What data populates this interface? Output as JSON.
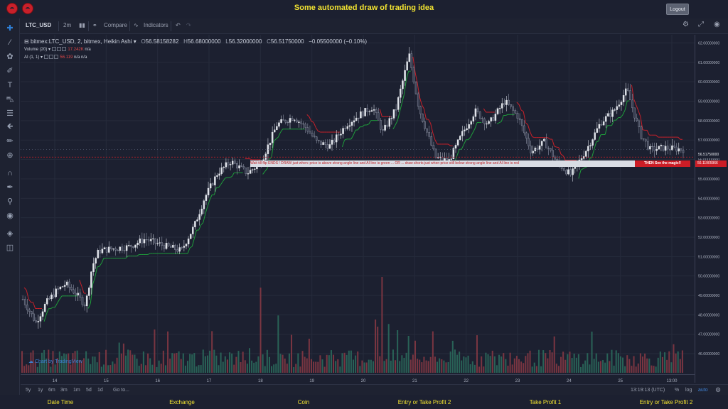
{
  "app": {
    "title": "Some automated draw of trading idea",
    "logout_label": "Logout"
  },
  "toolbar": {
    "symbol": "LTC_USD",
    "interval": "2m",
    "compare_label": "Compare",
    "indicators_label": "Indicators"
  },
  "legend": {
    "main": "bitmex:LTC_USD, 2, bitmex, Heikin Ashi",
    "o_label": "O",
    "o_value": "56.58158282",
    "h_label": "H",
    "h_value": "56.68000000",
    "l_label": "L",
    "l_value": "56.32000000",
    "c_label": "C",
    "c_value": "56.51750000",
    "change": "−0.05500000 (−0.10%)",
    "volume_label": "Volume (20)",
    "volume_value": "17.242K",
    "volume_na": "n/a",
    "ai_label": "AI (1, 1)",
    "ai_value": "56.119",
    "ai_na1": "n/a",
    "ai_na2": "n/a"
  },
  "banner": {
    "text": "Wait till flip ENDS !   DRAW just when:  price is above strong angle line and AI line is green   ...   OR   ...   draw shorts just when price still below strong angle line and AI line is red",
    "right": "THEN See the magic!!"
  },
  "price_tags": {
    "current": "56.51750000",
    "ai": "56.11905966"
  },
  "tv_link": "Chart by TradingView",
  "bottom": {
    "ranges": [
      "5y",
      "1y",
      "6m",
      "3m",
      "1m",
      "5d",
      "1d"
    ],
    "goto": "Go to...",
    "time": "13:19:13 (UTC)",
    "pct": "%",
    "log": "log",
    "auto": "auto"
  },
  "footer": {
    "cols": [
      "Date Time",
      "Exchange",
      "Coin",
      "Entry or Take Profit 2",
      "Take Profit 1",
      "Entry or Take Profit 2"
    ]
  },
  "colors": {
    "up": "#26a69a",
    "down": "#ef5350",
    "candle_up": "#dfe3ea",
    "ai_green": "#1f9d3b",
    "ai_red": "#c8202a",
    "accent": "#3d7fd1"
  },
  "chart_data": {
    "type": "candlestick",
    "price_ticks": [
      "62.00000000",
      "61.00000000",
      "60.00000000",
      "59.00000000",
      "58.00000000",
      "57.00000000",
      "56.00000000",
      "55.00000000",
      "54.00000000",
      "53.00000000",
      "52.00000000",
      "51.00000000",
      "50.00000000",
      "49.00000000",
      "48.00000000",
      "47.00000000",
      "46.00000000"
    ],
    "time_ticks": [
      "14",
      "15",
      "16",
      "17",
      "18",
      "19",
      "20",
      "21",
      "22",
      "23",
      "24",
      "25",
      "13:00"
    ],
    "ylim": [
      45.6,
      62.2
    ],
    "price_path": [
      [
        0,
        48.8
      ],
      [
        0.01,
        48.2
      ],
      [
        0.02,
        47.6
      ],
      [
        0.035,
        48.6
      ],
      [
        0.05,
        49.2
      ],
      [
        0.065,
        49.6
      ],
      [
        0.08,
        49.1
      ],
      [
        0.095,
        48.5
      ],
      [
        0.105,
        50.5
      ],
      [
        0.115,
        51.3
      ],
      [
        0.135,
        51.4
      ],
      [
        0.16,
        51.5
      ],
      [
        0.185,
        51.9
      ],
      [
        0.21,
        51.6
      ],
      [
        0.24,
        51.3
      ],
      [
        0.26,
        52.6
      ],
      [
        0.275,
        54.0
      ],
      [
        0.295,
        55.3
      ],
      [
        0.315,
        55.9
      ],
      [
        0.34,
        55.3
      ],
      [
        0.36,
        55.8
      ],
      [
        0.385,
        57.8
      ],
      [
        0.41,
        58.2
      ],
      [
        0.43,
        57.6
      ],
      [
        0.445,
        56.9
      ],
      [
        0.465,
        56.7
      ],
      [
        0.49,
        57.8
      ],
      [
        0.51,
        58.3
      ],
      [
        0.53,
        58.7
      ],
      [
        0.545,
        57.4
      ],
      [
        0.565,
        58.6
      ],
      [
        0.585,
        61.4
      ],
      [
        0.6,
        58.6
      ],
      [
        0.625,
        56.1
      ],
      [
        0.645,
        55.9
      ],
      [
        0.665,
        57.3
      ],
      [
        0.685,
        58.5
      ],
      [
        0.705,
        57.8
      ],
      [
        0.73,
        59.0
      ],
      [
        0.75,
        58.2
      ],
      [
        0.77,
        56.4
      ],
      [
        0.79,
        56.9
      ],
      [
        0.81,
        55.8
      ],
      [
        0.83,
        55.2
      ],
      [
        0.855,
        56.6
      ],
      [
        0.875,
        57.9
      ],
      [
        0.895,
        58.5
      ],
      [
        0.915,
        59.6
      ],
      [
        0.935,
        57.3
      ],
      [
        0.95,
        56.5
      ],
      [
        0.97,
        56.6
      ],
      [
        1.0,
        56.52
      ]
    ],
    "volume_ylim": [
      0,
      15000
    ]
  }
}
